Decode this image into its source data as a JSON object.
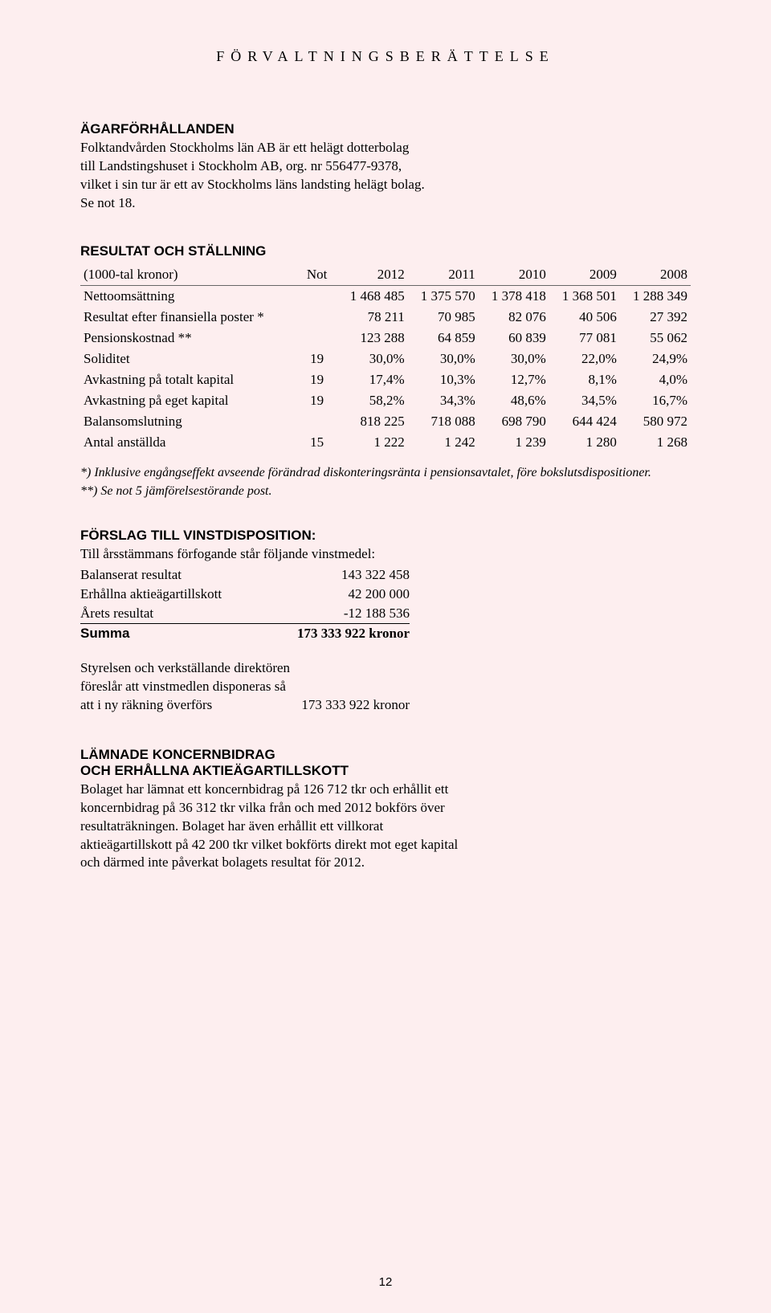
{
  "header": "FÖRVALTNINGSBERÄTTELSE",
  "agar": {
    "title": "ÄGARFÖRHÅLLANDEN",
    "body": "Folktandvården Stockholms län AB är ett helägt dotterbolag till Landstingshuset i Stockholm AB, org. nr 556477-9378, vilket i sin tur är ett av Stockholms läns landsting helägt bolag. Se not 18."
  },
  "results": {
    "title": "RESULTAT OCH STÄLLNING",
    "unit_label": "(1000-tal kronor)",
    "not_label": "Not",
    "years": [
      "2012",
      "2011",
      "2010",
      "2009",
      "2008"
    ],
    "rows": [
      {
        "label": "Nettoomsättning",
        "not": "",
        "v": [
          "1 468 485",
          "1 375 570",
          "1 378 418",
          "1 368 501",
          "1 288 349"
        ]
      },
      {
        "label": "Resultat efter finansiella poster *",
        "not": "",
        "v": [
          "78 211",
          "70 985",
          "82 076",
          "40 506",
          "27 392"
        ]
      },
      {
        "label": "Pensionskostnad **",
        "not": "",
        "v": [
          "123 288",
          "64 859",
          "60 839",
          "77 081",
          "55 062"
        ]
      },
      {
        "label": "Soliditet",
        "not": "19",
        "v": [
          "30,0%",
          "30,0%",
          "30,0%",
          "22,0%",
          "24,9%"
        ]
      },
      {
        "label": "Avkastning på totalt kapital",
        "not": "19",
        "v": [
          "17,4%",
          "10,3%",
          "12,7%",
          "8,1%",
          "4,0%"
        ]
      },
      {
        "label": "Avkastning på eget kapital",
        "not": "19",
        "v": [
          "58,2%",
          "34,3%",
          "48,6%",
          "34,5%",
          "16,7%"
        ]
      },
      {
        "label": "Balansomslutning",
        "not": "",
        "v": [
          "818 225",
          "718 088",
          "698 790",
          "644 424",
          "580 972"
        ]
      },
      {
        "label": "Antal anställda",
        "not": "15",
        "v": [
          "1 222",
          "1 242",
          "1 239",
          "1 280",
          "1 268"
        ]
      }
    ],
    "footnote1": "*) Inklusive engångseffekt avseende förändrad diskonteringsränta i pensionsavtalet, före bokslutsdispositioner.",
    "footnote2": "**) Se not 5 jämförelsestörande post."
  },
  "disp": {
    "title": "FÖRSLAG TILL VINSTDISPOSITION:",
    "intro": "Till årsstämmans förfogande står följande vinstmedel:",
    "rows": [
      {
        "label": "Balanserat resultat",
        "value": "143 322 458"
      },
      {
        "label": "Erhållna aktieägartillskott",
        "value": "42 200 000"
      },
      {
        "label": "Årets resultat",
        "value": "-12 188 536"
      }
    ],
    "sum_label": "Summa",
    "sum_value": "173 333 922 kronor",
    "transfer_intro1": "Styrelsen och verkställande direktören",
    "transfer_intro2": "föreslår att vinstmedlen disponeras så",
    "transfer_label": "att i ny räkning överförs",
    "transfer_value": "173 333 922 kronor"
  },
  "koncern": {
    "title1": "LÄMNADE KONCERNBIDRAG",
    "title2": "OCH ERHÅLLNA AKTIEÄGARTILLSKOTT",
    "body": "Bolaget har lämnat ett koncernbidrag på 126 712 tkr och erhållit ett koncernbidrag på 36 312 tkr vilka från och med 2012 bokförs över resultaträkningen. Bolaget har även erhållit ett villkorat aktieägartillskott på 42 200 tkr vilket bokförts direkt mot eget kapital och därmed inte påverkat bolagets resultat för 2012."
  },
  "page_number": "12"
}
